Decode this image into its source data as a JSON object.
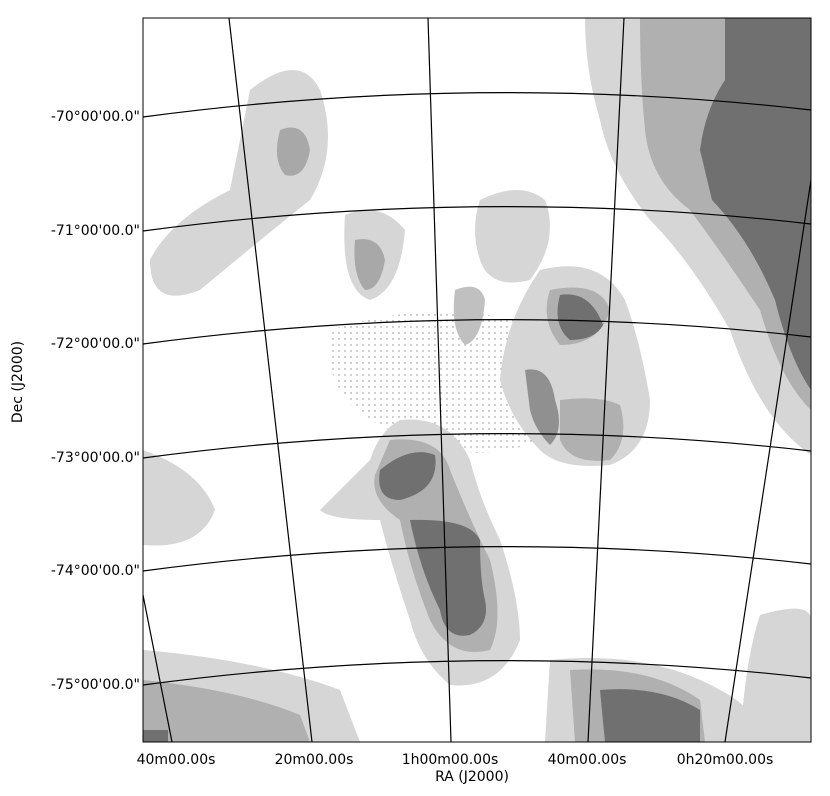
{
  "axes": {
    "x_label": "RA (J2000)",
    "y_label": "Dec (J2000)",
    "x_ticks": [
      "40m00.00s",
      "20m00.00s",
      "1h00m00.00s",
      "40m00.00s",
      "0h20m00.00s"
    ],
    "y_ticks": [
      "-70°00'00.0\"",
      "-71°00'00.0\"",
      "-72°00'00.0\"",
      "-73°00'00.0\"",
      "-74°00'00.0\"",
      "-75°00'00.0\""
    ]
  }
}
